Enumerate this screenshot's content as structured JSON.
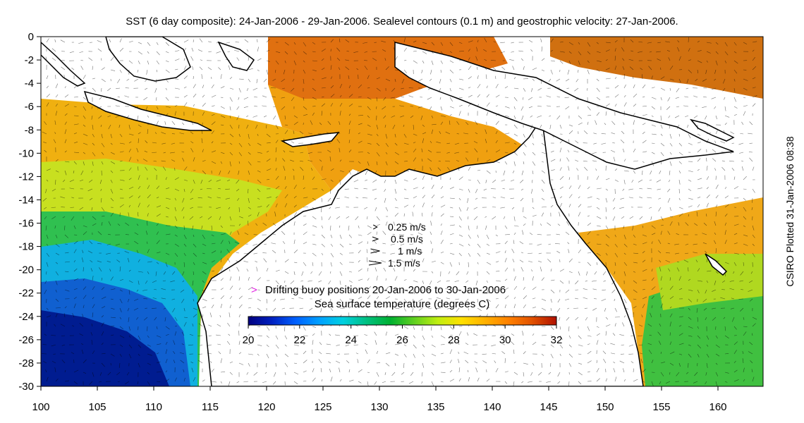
{
  "title": "SST (6 day composite): 24-Jan-2006 - 29-Jan-2006. Sealevel contours (0.1 m) and geostrophic velocity: 27-Jan-2006.",
  "side_label": "CSIRO Plotted 31-Jan-2006 08:38",
  "map": {
    "lon_range": [
      100,
      164
    ],
    "lat_range": [
      -30,
      0
    ],
    "x_ticks": [
      "100",
      "105",
      "110",
      "115",
      "120",
      "125",
      "130",
      "135",
      "140",
      "145",
      "150",
      "155",
      "160"
    ],
    "y_ticks": [
      "0",
      "-2",
      "-4",
      "-6",
      "-8",
      "-10",
      "-12",
      "-14",
      "-16",
      "-18",
      "-20",
      "-22",
      "-24",
      "-26",
      "-28",
      "-30"
    ]
  },
  "velocity_legend": {
    "items": [
      {
        "label": "0.25 m/s",
        "speed": 0.25
      },
      {
        "label": "0.5 m/s",
        "speed": 0.5
      },
      {
        "label": "1 m/s",
        "speed": 1
      },
      {
        "label": "1.5 m/s",
        "speed": 1.5
      }
    ]
  },
  "buoy_legend": {
    "symbol": ">",
    "label": "Drifting buoy positions 20-Jan-2006 to 30-Jan-2006",
    "color": "#e020e0"
  },
  "colorbar": {
    "title": "Sea surface temperature (degrees C)",
    "min": 20,
    "max": 32,
    "ticks": [
      "20",
      "22",
      "24",
      "26",
      "28",
      "30",
      "32"
    ],
    "colors": [
      "#000080",
      "#0020c0",
      "#0060ff",
      "#00a0ff",
      "#00d0e0",
      "#00c080",
      "#00b030",
      "#60d020",
      "#c0ee10",
      "#ffe000",
      "#ffb000",
      "#ff8000",
      "#e05000",
      "#b01000"
    ]
  },
  "colors": {
    "land": "#ffffff",
    "coast": "#000000",
    "arrow": "#000000",
    "contour": "#ffffff"
  }
}
